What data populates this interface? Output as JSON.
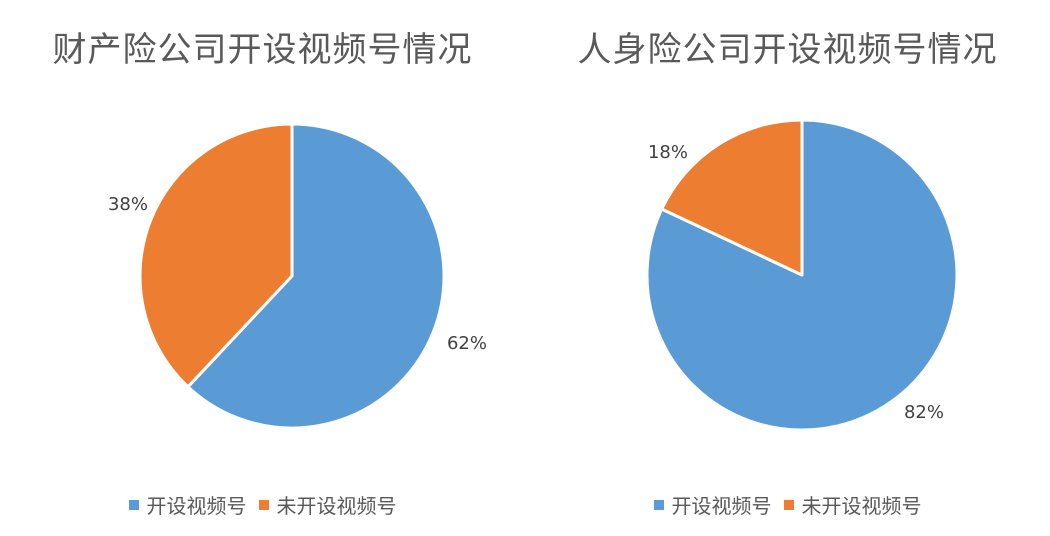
{
  "chart_data": [
    {
      "type": "pie",
      "title": "财产险公司开设视频号情况",
      "categories": [
        "开设视频号",
        "未开设视频号"
      ],
      "values": [
        62,
        38
      ],
      "labels": [
        "62%",
        "38%"
      ],
      "colors": [
        "#5B9BD5",
        "#ED7D31"
      ],
      "legend": "bottom"
    },
    {
      "type": "pie",
      "title": "人身险公司开设视频号情况",
      "categories": [
        "开设视频号",
        "未开设视频号"
      ],
      "values": [
        82,
        18
      ],
      "labels": [
        "82%",
        "18%"
      ],
      "colors": [
        "#5B9BD5",
        "#ED7D31"
      ],
      "legend": "bottom"
    }
  ]
}
